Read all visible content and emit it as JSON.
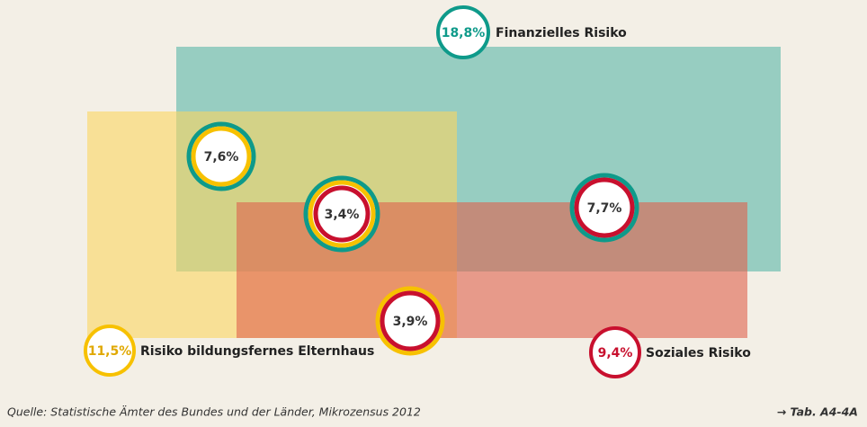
{
  "sets": [
    {
      "value": "18,8%",
      "label": "Finanzielles Risiko"
    },
    {
      "value": "11,5%",
      "label": "Risiko bildungsfernes Elternhaus"
    },
    {
      "value": "9,4%",
      "label": "Soziales Risiko"
    }
  ],
  "intersections": [
    "7,6%",
    "3,4%",
    "7,7%",
    "3,9%"
  ],
  "source": "Quelle: Statistische Ämter des Bundes und der Länder, Mikrozensus 2012",
  "reference": "→ Tab. A4-4A"
}
